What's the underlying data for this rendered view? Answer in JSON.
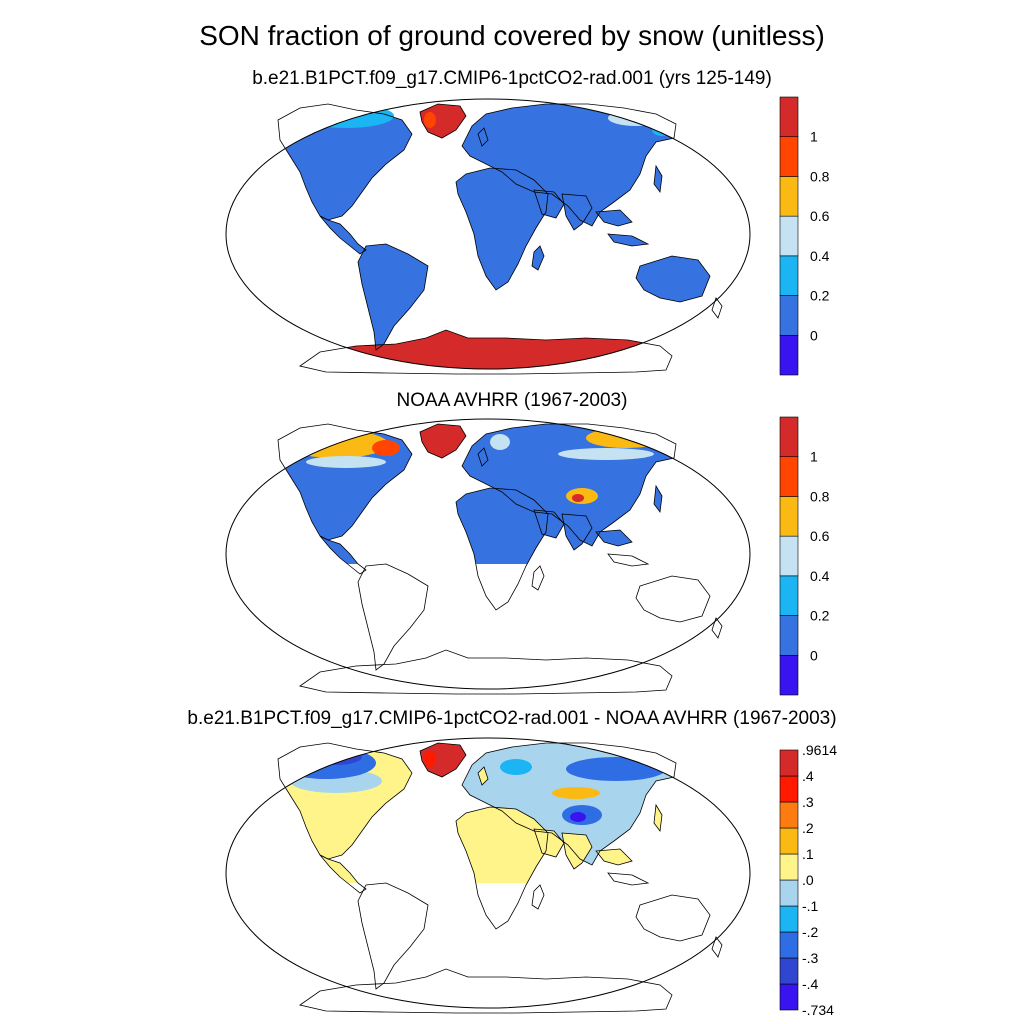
{
  "title": "SON fraction of ground covered by snow (unitless)",
  "colors": {
    "ocean": "#ffffff",
    "outline": "#000000",
    "seq": [
      "#3a14f0",
      "#3672e0",
      "#1ab5f2",
      "#c4e2f2",
      "#fbb914",
      "#ff4500",
      "#d42a2a"
    ],
    "div": [
      "#3a14f0",
      "#3045d0",
      "#2f6de4",
      "#1ab5f2",
      "#a8d4ee",
      "#fff48a",
      "#fbb914",
      "#fd7c12",
      "#ff1a00",
      "#d42a2a"
    ]
  },
  "chart_data": [
    {
      "type": "heatmap",
      "title": "b.e21.B1PCT.f09_g17.CMIP6-1pctCO2-rad.001 (yrs 125-149)",
      "projection": "Robinson",
      "colorbar": {
        "levels": [
          "0",
          "0.2",
          "0.4",
          "0.6",
          "0.8",
          "1"
        ],
        "min_bin": "<0",
        "max_bin": ">1"
      },
      "regions": [
        {
          "region": "Greenland",
          "value_range": [
            1.0,
            1.0
          ]
        },
        {
          "region": "Antarctica",
          "value_range": [
            1.0,
            1.0
          ]
        },
        {
          "region": "Arctic Canada / Alaska",
          "value_range": [
            0.2,
            0.4
          ]
        },
        {
          "region": "Northern Siberia",
          "value_range": [
            0.4,
            0.6
          ]
        },
        {
          "region": "Rest of land",
          "value_range": [
            0.0,
            0.2
          ]
        }
      ]
    },
    {
      "type": "heatmap",
      "title": "NOAA AVHRR (1967-2003)",
      "projection": "Robinson",
      "colorbar": {
        "levels": [
          "0",
          "0.2",
          "0.4",
          "0.6",
          "0.8",
          "1"
        ],
        "min_bin": "<0",
        "max_bin": ">1"
      },
      "regions": [
        {
          "region": "Greenland",
          "value_range": [
            1.0,
            1.0
          ]
        },
        {
          "region": "Northern Canada",
          "value_range": [
            0.6,
            0.8
          ]
        },
        {
          "region": "Northern Siberia",
          "value_range": [
            0.6,
            0.8
          ]
        },
        {
          "region": "Tibetan Plateau",
          "value_range": [
            0.6,
            1.0
          ]
        },
        {
          "region": "Mid-latitude land",
          "value_range": [
            0.0,
            0.2
          ]
        },
        {
          "region": "Southern Hemisphere",
          "value_range": null
        }
      ]
    },
    {
      "type": "heatmap",
      "title": "b.e21.B1PCT.f09_g17.CMIP6-1pctCO2-rad.001 - NOAA AVHRR (1967-2003)",
      "projection": "Robinson",
      "colorbar": {
        "levels": [
          "-.734",
          "-.4",
          "-.3",
          "-.2",
          "-.1",
          ".0",
          ".1",
          ".2",
          ".3",
          ".4",
          ".9614"
        ]
      },
      "regions": [
        {
          "region": "Greenland",
          "value_range": [
            0.4,
            0.9614
          ]
        },
        {
          "region": "Northern Canada",
          "value_range": [
            -0.4,
            -0.2
          ]
        },
        {
          "region": "Tibetan Plateau",
          "value_range": [
            -0.734,
            -0.3
          ]
        },
        {
          "region": "Siberia",
          "value_range": [
            -0.3,
            0.1
          ]
        },
        {
          "region": "Africa / S. Asia",
          "value_range": [
            0.0,
            0.1
          ]
        },
        {
          "region": "Southern Hemisphere",
          "value_range": null
        }
      ]
    }
  ]
}
